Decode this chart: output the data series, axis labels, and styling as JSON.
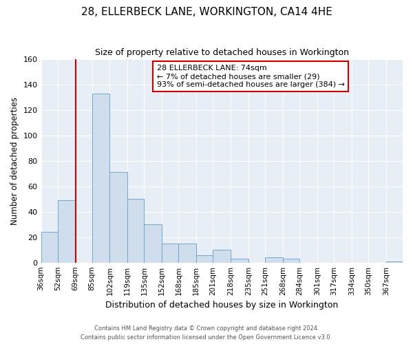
{
  "title": "28, ELLERBECK LANE, WORKINGTON, CA14 4HE",
  "subtitle": "Size of property relative to detached houses in Workington",
  "xlabel": "Distribution of detached houses by size in Workington",
  "ylabel": "Number of detached properties",
  "bin_edges": [
    36,
    52,
    69,
    85,
    102,
    119,
    135,
    152,
    168,
    185,
    201,
    218,
    235,
    251,
    268,
    284,
    301,
    317,
    334,
    350,
    367,
    383
  ],
  "bin_labels": [
    "36sqm",
    "52sqm",
    "69sqm",
    "85sqm",
    "102sqm",
    "119sqm",
    "135sqm",
    "152sqm",
    "168sqm",
    "185sqm",
    "201sqm",
    "218sqm",
    "235sqm",
    "251sqm",
    "268sqm",
    "284sqm",
    "301sqm",
    "317sqm",
    "334sqm",
    "350sqm",
    "367sqm"
  ],
  "bar_values": [
    24,
    49,
    0,
    133,
    71,
    50,
    30,
    15,
    15,
    6,
    10,
    3,
    0,
    4,
    3,
    0,
    0,
    0,
    0,
    0,
    1
  ],
  "bar_color": "#cfdded",
  "bar_edge_color": "#6fa8cc",
  "ylim": [
    0,
    160
  ],
  "yticks": [
    0,
    20,
    40,
    60,
    80,
    100,
    120,
    140,
    160
  ],
  "vline_x": 69,
  "vline_color": "#cc0000",
  "annotation_title": "28 ELLERBECK LANE: 74sqm",
  "annotation_line1": "← 7% of detached houses are smaller (29)",
  "annotation_line2": "93% of semi-detached houses are larger (384) →",
  "annotation_box_color": "#cc0000",
  "footer1": "Contains HM Land Registry data © Crown copyright and database right 2024.",
  "footer2": "Contains public sector information licensed under the Open Government Licence v3.0.",
  "background_color": "#e8eef5",
  "plot_bg_color": "#ffffff",
  "grid_color": "#ffffff"
}
